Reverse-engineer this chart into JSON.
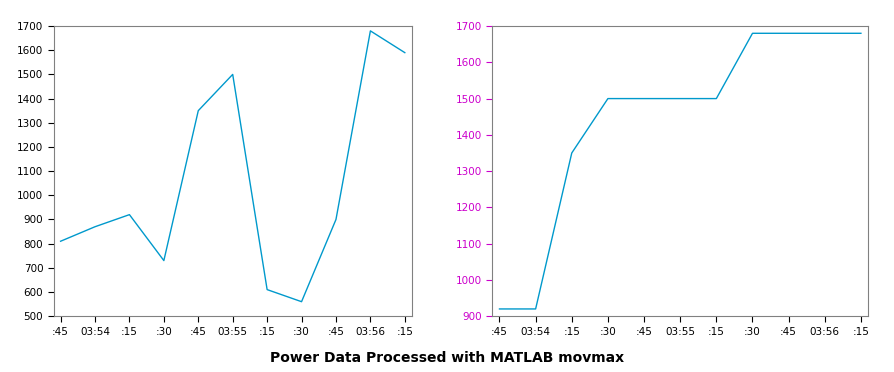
{
  "title": "Power Data Processed with MATLAB movmax",
  "title_fontsize": 10,
  "title_fontweight": "bold",
  "left_xtick_labels": [
    ":45",
    "03:54",
    ":15",
    ":30",
    ":45",
    "03:55",
    ":15",
    ":30",
    ":45",
    "03:56",
    ":15"
  ],
  "left_xtick_positions": [
    0,
    1,
    2,
    3,
    4,
    5,
    6,
    7,
    8,
    9,
    10
  ],
  "left_ylim": [
    500,
    1700
  ],
  "left_yticks": [
    500,
    600,
    700,
    800,
    900,
    1000,
    1100,
    1200,
    1300,
    1400,
    1500,
    1600,
    1700
  ],
  "left_y": [
    810,
    870,
    920,
    730,
    1350,
    1500,
    610,
    560,
    900,
    1680,
    1590
  ],
  "right_xtick_labels": [
    ":45",
    "03:54",
    ":15",
    ":30",
    ":45",
    "03:55",
    ":15",
    ":30",
    ":45",
    "03:56",
    ":15"
  ],
  "right_xtick_positions": [
    0,
    1,
    2,
    3,
    4,
    5,
    6,
    7,
    8,
    9,
    10
  ],
  "right_ylim": [
    900,
    1700
  ],
  "right_yticks": [
    900,
    1000,
    1100,
    1200,
    1300,
    1400,
    1500,
    1600,
    1700
  ],
  "right_y": [
    920,
    920,
    1350,
    1500,
    1500,
    1500,
    1500,
    1680,
    1680,
    1680,
    1680
  ],
  "line_color": "#0099cc",
  "line_width": 1.0,
  "left_ytick_color": "#000000",
  "right_ytick_color": "#cc00cc",
  "xtick_color": "#000000",
  "spine_color": "#808080",
  "background_color": "#ffffff",
  "title_color": "#000000"
}
